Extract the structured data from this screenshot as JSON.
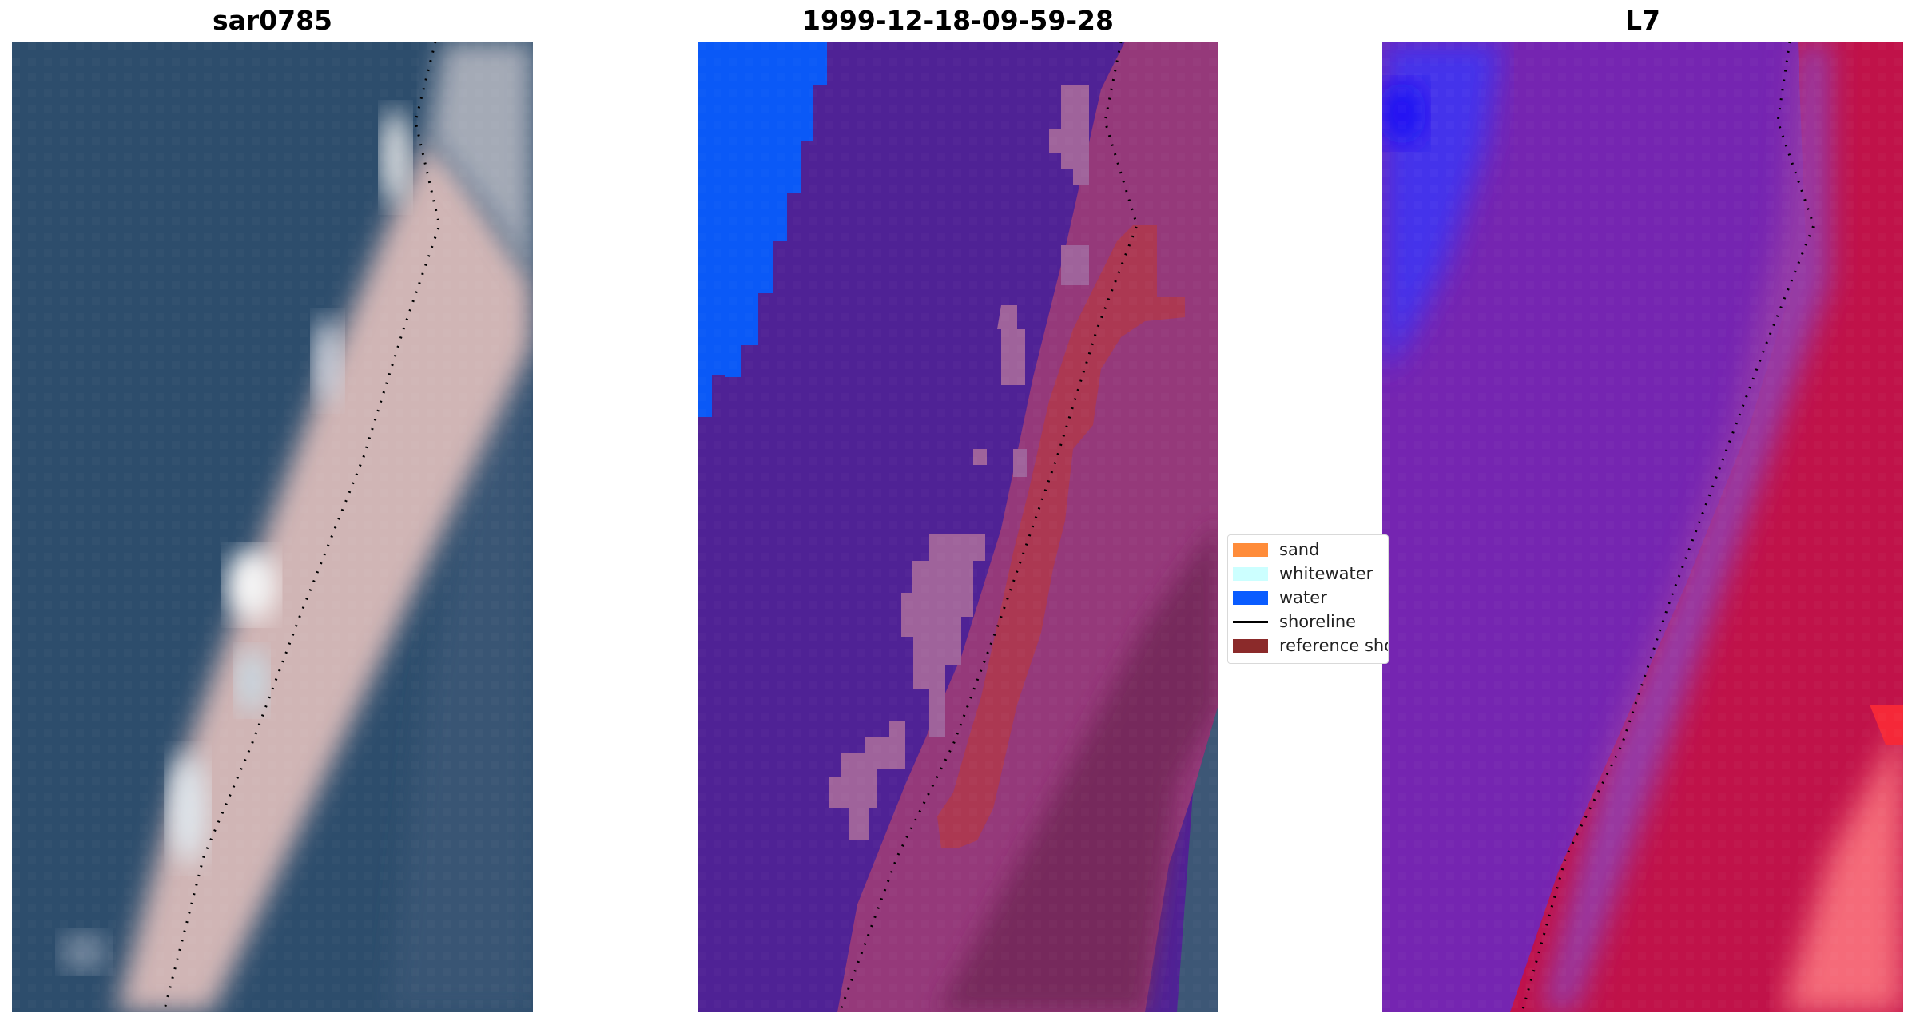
{
  "panels": [
    {
      "title": "sar0785"
    },
    {
      "title": "1999-12-18-09-59-28"
    },
    {
      "title": "L7"
    }
  ],
  "legend": {
    "items": [
      {
        "label": "sand",
        "color": "#ff8c3a"
      },
      {
        "label": "whitewater",
        "color": "#ccffff"
      },
      {
        "label": "water",
        "color": "#0a5cff"
      },
      {
        "label": "shoreline",
        "color": "#000000"
      },
      {
        "label": "reference shoreline",
        "color": "#8b2a2a"
      }
    ]
  }
}
